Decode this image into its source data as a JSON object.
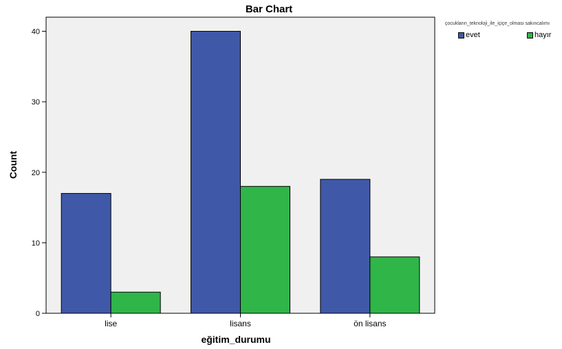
{
  "chart_data": {
    "type": "bar",
    "title": "Bar Chart",
    "xlabel": "eğitim_durumu",
    "ylabel": "Count",
    "categories": [
      "lise",
      "lisans",
      "ön lisans"
    ],
    "series": [
      {
        "name": "evet",
        "values": [
          17,
          40,
          19
        ],
        "color": "#3f59a8"
      },
      {
        "name": "hayır",
        "values": [
          3,
          18,
          8
        ],
        "color": "#30b549"
      }
    ],
    "ylim": [
      0,
      42
    ],
    "yticks": [
      0,
      10,
      20,
      30,
      40
    ],
    "grid": false,
    "plot_background": "#f0f0f0",
    "legend": {
      "title": "çocukların_teknoloji_ile_içiçe_olması sakıncalımı",
      "placement": "top-right"
    }
  }
}
